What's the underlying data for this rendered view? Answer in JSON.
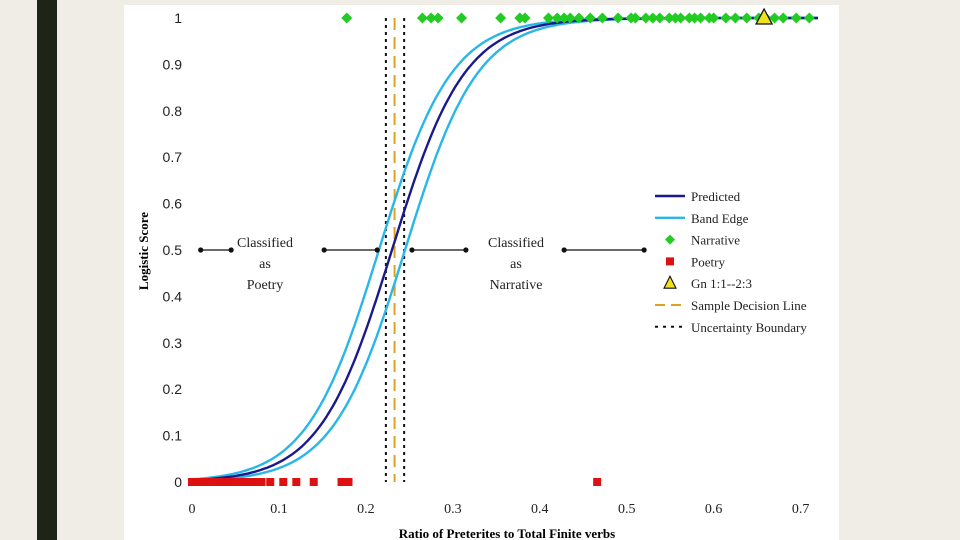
{
  "chart_data": {
    "type": "scatter",
    "title": "",
    "xlabel": "Ratio of Preterites to Total Finite verbs",
    "ylabel": "Logistic Score",
    "xlim": [
      0,
      0.72
    ],
    "ylim": [
      0,
      1
    ],
    "x_ticks": [
      "0",
      "0.1",
      "0.2",
      "0.3",
      "0.4",
      "0.5",
      "0.6",
      "0.7"
    ],
    "y_ticks": [
      "0",
      "0.1",
      "0.2",
      "0.3",
      "0.4",
      "0.5",
      "0.6",
      "0.7",
      "0.8",
      "0.9",
      "1"
    ],
    "curve": {
      "midpoint": 0.23,
      "steepness": 24,
      "band_offset": 0.015
    },
    "decision_line": 0.233,
    "uncertainty_bounds": [
      0.223,
      0.244
    ],
    "series": [
      {
        "name": "Predicted",
        "kind": "line",
        "color": "#1a1a8c"
      },
      {
        "name": "Band Edge",
        "kind": "line",
        "color": "#29b6e8"
      },
      {
        "name": "Narrative",
        "kind": "points",
        "color": "#22cc22",
        "y": 1,
        "x": [
          0.178,
          0.265,
          0.275,
          0.283,
          0.31,
          0.355,
          0.377,
          0.383,
          0.41,
          0.42,
          0.428,
          0.435,
          0.445,
          0.458,
          0.472,
          0.49,
          0.505,
          0.51,
          0.522,
          0.53,
          0.538,
          0.549,
          0.556,
          0.562,
          0.572,
          0.578,
          0.585,
          0.595,
          0.6,
          0.614,
          0.625,
          0.638,
          0.652,
          0.66,
          0.67,
          0.68,
          0.695,
          0.71
        ]
      },
      {
        "name": "Poetry",
        "kind": "points",
        "color": "#dd1111",
        "y": 0,
        "x": [
          0.0,
          0.005,
          0.01,
          0.015,
          0.02,
          0.025,
          0.03,
          0.035,
          0.04,
          0.045,
          0.05,
          0.055,
          0.06,
          0.065,
          0.07,
          0.075,
          0.08,
          0.09,
          0.105,
          0.12,
          0.14,
          0.172,
          0.18,
          0.466
        ]
      },
      {
        "name": "Gn 1:1--2:3",
        "kind": "points",
        "color": "#f0e020",
        "x": [
          0.658
        ],
        "y": 1
      },
      {
        "name": "Sample Decision Line",
        "kind": "dashed-line",
        "color": "#e0a020"
      },
      {
        "name": "Uncertainty Boundary",
        "kind": "dotted-line",
        "color": "#111111"
      }
    ],
    "annotations": {
      "poetry": [
        "Classified",
        "as",
        "Poetry"
      ],
      "narrative": [
        "Classified",
        "as",
        "Narrative"
      ]
    },
    "legend_position": "right"
  },
  "colors": {
    "background": "#efede6",
    "side_bar": "#1f2418",
    "panel": "#ffffff"
  }
}
